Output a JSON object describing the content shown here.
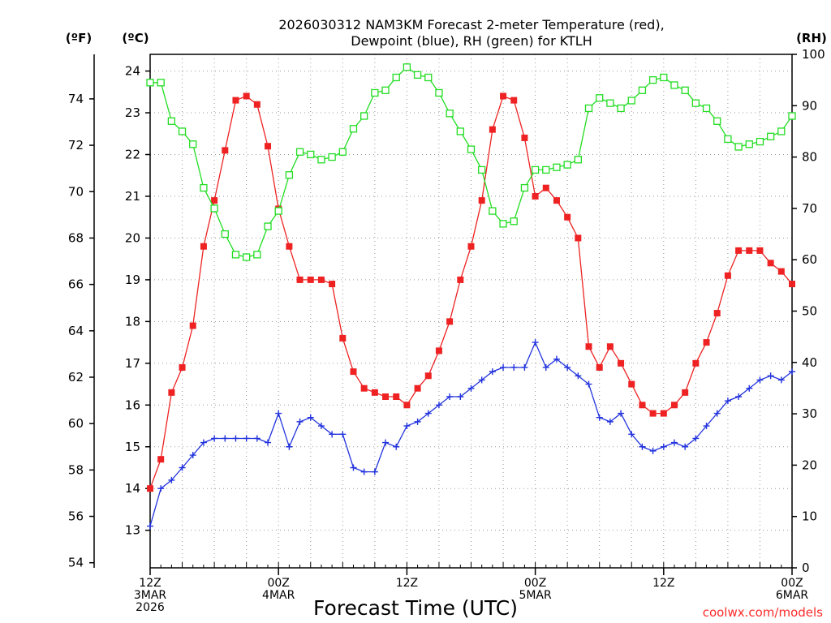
{
  "chart_data": {
    "type": "line",
    "title": [
      "2026030312 NAM3KM Forecast 2-meter Temperature (red),",
      "Dewpoint (blue), RH (green) for KTLH"
    ],
    "xlabel": "Forecast Time (UTC)",
    "credit": "coolwx.com/models",
    "units": {
      "fahrenheit": "(ºF)",
      "celsius": "(ºC)",
      "rh": "(RH)"
    },
    "x_range_hours": [
      0,
      60
    ],
    "x_ticks": [
      {
        "hour": 0,
        "lines": [
          "12Z",
          "3MAR",
          "2026"
        ]
      },
      {
        "hour": 12,
        "lines": [
          "00Z",
          "4MAR"
        ]
      },
      {
        "hour": 24,
        "lines": [
          "12Z"
        ]
      },
      {
        "hour": 36,
        "lines": [
          "00Z",
          "5MAR"
        ]
      },
      {
        "hour": 48,
        "lines": [
          "12Z"
        ]
      },
      {
        "hour": 60,
        "lines": [
          "00Z",
          "6MAR"
        ]
      }
    ],
    "celsius_axis": {
      "range": [
        12.1,
        24.4
      ],
      "ticks": [
        13,
        14,
        15,
        16,
        17,
        18,
        19,
        20,
        21,
        22,
        23,
        24
      ]
    },
    "fahrenheit_axis": {
      "ticks": [
        54,
        56,
        58,
        60,
        62,
        64,
        66,
        68,
        70,
        72,
        74
      ]
    },
    "rh_axis": {
      "range": [
        0,
        100
      ],
      "ticks": [
        0,
        10,
        20,
        30,
        40,
        50,
        60,
        70,
        80,
        90,
        100
      ]
    },
    "series": [
      {
        "name": "2-meter Temperature",
        "unit": "C",
        "color": "#ee2222",
        "marker": "filled-square",
        "values": [
          14.0,
          14.7,
          16.3,
          16.9,
          17.9,
          19.8,
          20.9,
          22.1,
          23.3,
          23.4,
          23.2,
          22.2,
          20.7,
          19.8,
          19.0,
          19.0,
          19.0,
          18.9,
          17.6,
          16.8,
          16.4,
          16.3,
          16.2,
          16.2,
          16.0,
          16.4,
          16.7,
          17.3,
          18.0,
          19.0,
          19.8,
          20.9,
          22.6,
          23.4,
          23.3,
          22.4,
          21.0,
          21.2,
          20.9,
          20.5,
          20.0,
          17.4,
          16.9,
          17.4,
          17.0,
          16.5,
          16.0,
          15.8,
          15.8,
          16.0,
          16.3,
          17.0,
          17.5,
          18.2,
          19.1,
          19.7,
          19.7,
          19.7,
          19.4,
          19.2,
          18.9
        ]
      },
      {
        "name": "Dewpoint",
        "unit": "C",
        "color": "#2233dd",
        "marker": "plus",
        "values": [
          13.1,
          14.0,
          14.2,
          14.5,
          14.8,
          15.1,
          15.2,
          15.2,
          15.2,
          15.2,
          15.2,
          15.1,
          15.8,
          15.0,
          15.6,
          15.7,
          15.5,
          15.3,
          15.3,
          14.5,
          14.4,
          14.4,
          15.1,
          15.0,
          15.5,
          15.6,
          15.8,
          16.0,
          16.2,
          16.2,
          16.4,
          16.6,
          16.8,
          16.9,
          16.9,
          16.9,
          17.5,
          16.9,
          17.1,
          16.9,
          16.7,
          16.5,
          15.7,
          15.6,
          15.8,
          15.3,
          15.0,
          14.9,
          15.0,
          15.1,
          15.0,
          15.2,
          15.5,
          15.8,
          16.1,
          16.2,
          16.4,
          16.6,
          16.7,
          16.6,
          16.8
        ]
      },
      {
        "name": "RH",
        "unit": "%",
        "color": "#22dd22",
        "marker": "open-square",
        "values": [
          94.5,
          94.5,
          87.0,
          85.0,
          82.5,
          74.0,
          70.0,
          65.0,
          61.0,
          60.5,
          61.0,
          66.5,
          69.5,
          76.5,
          81.0,
          80.5,
          79.5,
          80.0,
          81.0,
          85.5,
          88.0,
          92.5,
          93.0,
          95.5,
          97.5,
          96.0,
          95.5,
          92.5,
          88.5,
          85.0,
          81.5,
          77.5,
          69.5,
          67.0,
          67.5,
          74.0,
          77.5,
          77.5,
          78.0,
          78.5,
          79.5,
          89.5,
          91.5,
          90.5,
          89.5,
          91.0,
          93.0,
          95.0,
          95.5,
          94.0,
          93.0,
          90.5,
          89.5,
          87.0,
          83.5,
          82.0,
          82.5,
          83.0,
          84.0,
          85.0,
          88.0
        ]
      }
    ]
  }
}
